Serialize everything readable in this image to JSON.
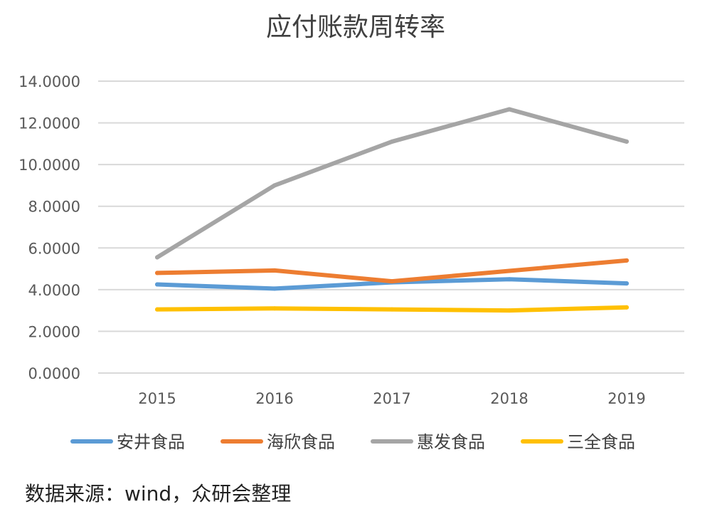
{
  "chart_data": {
    "type": "line",
    "title": "应付账款周转率",
    "xlabel": "",
    "ylabel": "",
    "categories": [
      "2015",
      "2016",
      "2017",
      "2018",
      "2019"
    ],
    "ylim": [
      0,
      14
    ],
    "yticks": [
      0,
      2,
      4,
      6,
      8,
      10,
      12,
      14
    ],
    "ytick_labels": [
      "0.0000",
      "2.0000",
      "4.0000",
      "6.0000",
      "8.0000",
      "10.0000",
      "12.0000",
      "14.0000"
    ],
    "grid": true,
    "legend_position": "bottom",
    "series": [
      {
        "name": "安井食品",
        "color": "#5B9BD5",
        "values": [
          4.25,
          4.05,
          4.35,
          4.5,
          4.3
        ]
      },
      {
        "name": "海欣食品",
        "color": "#ED7D31",
        "values": [
          4.8,
          4.92,
          4.4,
          4.9,
          5.4
        ]
      },
      {
        "name": "惠发食品",
        "color": "#A5A5A5",
        "values": [
          5.55,
          9.0,
          11.1,
          12.65,
          11.1
        ]
      },
      {
        "name": "三全食品",
        "color": "#FFC000",
        "values": [
          3.05,
          3.1,
          3.05,
          3.0,
          3.15
        ]
      }
    ]
  },
  "footer": {
    "source": "数据来源：wind，众研会整理"
  }
}
